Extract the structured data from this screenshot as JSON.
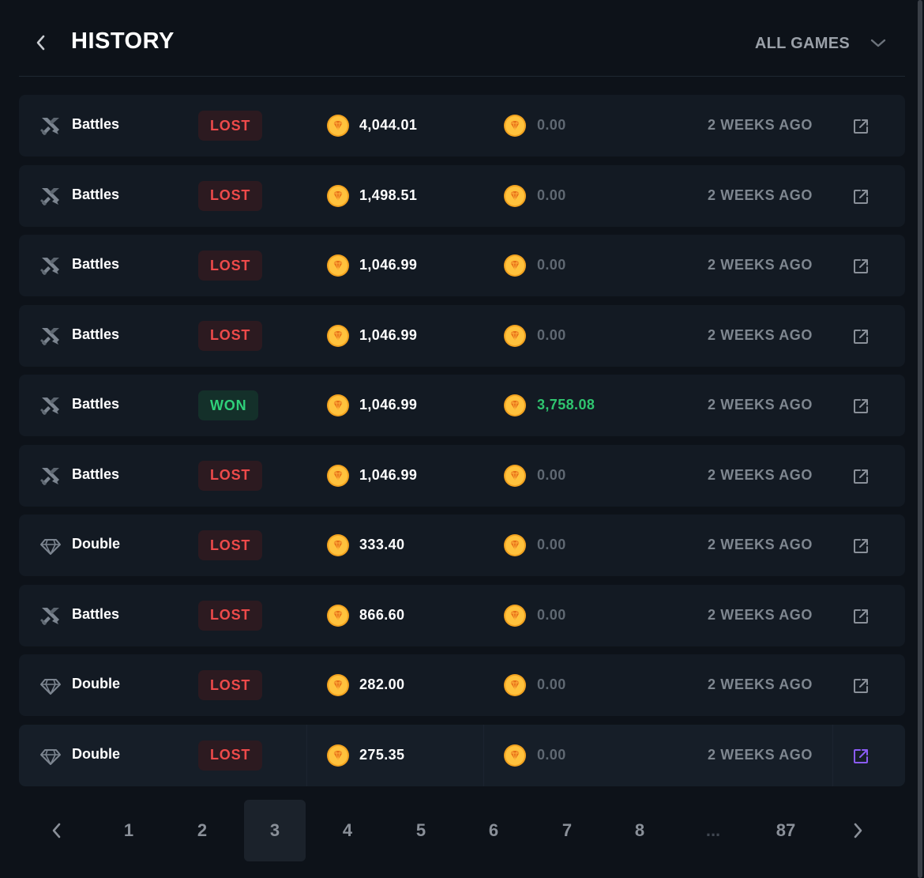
{
  "header": {
    "title": "HISTORY",
    "filter_label": "ALL GAMES"
  },
  "colors": {
    "background": "#0d1219",
    "row": "#131a23",
    "lost": "#ee4a4a",
    "won": "#2fd17a",
    "coin": "#f7b52b",
    "accent_link": "#8b5cf6"
  },
  "rows": [
    {
      "game": "Battles",
      "icon": "crossed-swords-icon",
      "status": "LOST",
      "bet": "4,044.01",
      "payout": "0.00",
      "time": "2 WEEKS AGO"
    },
    {
      "game": "Battles",
      "icon": "crossed-swords-icon",
      "status": "LOST",
      "bet": "1,498.51",
      "payout": "0.00",
      "time": "2 WEEKS AGO"
    },
    {
      "game": "Battles",
      "icon": "crossed-swords-icon",
      "status": "LOST",
      "bet": "1,046.99",
      "payout": "0.00",
      "time": "2 WEEKS AGO"
    },
    {
      "game": "Battles",
      "icon": "crossed-swords-icon",
      "status": "LOST",
      "bet": "1,046.99",
      "payout": "0.00",
      "time": "2 WEEKS AGO"
    },
    {
      "game": "Battles",
      "icon": "crossed-swords-icon",
      "status": "WON",
      "bet": "1,046.99",
      "payout": "3,758.08",
      "time": "2 WEEKS AGO"
    },
    {
      "game": "Battles",
      "icon": "crossed-swords-icon",
      "status": "LOST",
      "bet": "1,046.99",
      "payout": "0.00",
      "time": "2 WEEKS AGO"
    },
    {
      "game": "Double",
      "icon": "diamond-icon",
      "status": "LOST",
      "bet": "333.40",
      "payout": "0.00",
      "time": "2 WEEKS AGO"
    },
    {
      "game": "Battles",
      "icon": "crossed-swords-icon",
      "status": "LOST",
      "bet": "866.60",
      "payout": "0.00",
      "time": "2 WEEKS AGO"
    },
    {
      "game": "Double",
      "icon": "diamond-icon",
      "status": "LOST",
      "bet": "282.00",
      "payout": "0.00",
      "time": "2 WEEKS AGO"
    },
    {
      "game": "Double",
      "icon": "diamond-icon",
      "status": "LOST",
      "bet": "275.35",
      "payout": "0.00",
      "time": "2 WEEKS AGO"
    }
  ],
  "pagination": {
    "pages": [
      "1",
      "2",
      "3",
      "4",
      "5",
      "6",
      "7",
      "8",
      "...",
      "87"
    ],
    "current": "3"
  }
}
